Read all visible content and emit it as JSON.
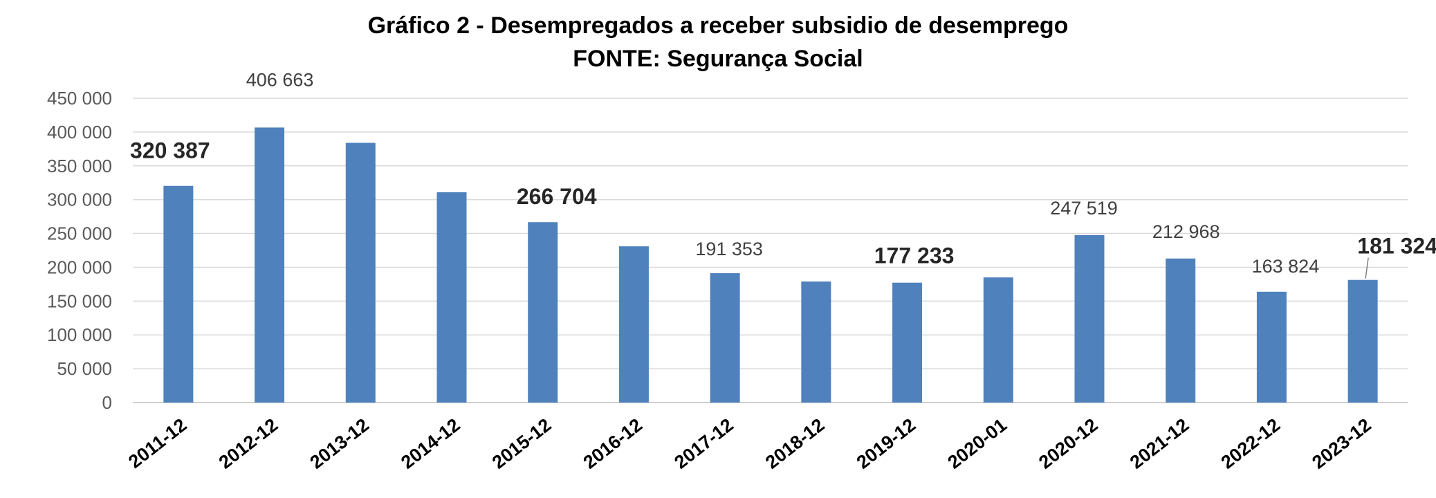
{
  "chart_data": {
    "type": "bar",
    "title": "Gráfico 2 - Desempregados a receber subsidio de desemprego",
    "subtitle": "FONTE: Segurança Social",
    "categories": [
      "2011-12",
      "2012-12",
      "2013-12",
      "2014-12",
      "2015-12",
      "2016-12",
      "2017-12",
      "2018-12",
      "2019-12",
      "2020-01",
      "2020-12",
      "2021-12",
      "2022-12",
      "2023-12"
    ],
    "values": [
      320387,
      406663,
      384000,
      311000,
      266704,
      231000,
      191353,
      179000,
      177233,
      185000,
      247519,
      212968,
      163824,
      181324
    ],
    "data_labels": [
      {
        "index": 0,
        "text": "320 387",
        "bold": true
      },
      {
        "index": 1,
        "text": "406 663",
        "bold": false
      },
      {
        "index": 4,
        "text": "266 704",
        "bold": true
      },
      {
        "index": 6,
        "text": "191 353",
        "bold": false
      },
      {
        "index": 8,
        "text": "177 233",
        "bold": true
      },
      {
        "index": 10,
        "text": "247 519",
        "bold": false
      },
      {
        "index": 11,
        "text": "212 968",
        "bold": false
      },
      {
        "index": 12,
        "text": "163 824",
        "bold": false
      },
      {
        "index": 13,
        "text": "181 324",
        "bold": true
      }
    ],
    "yticks": [
      "0",
      "50 000",
      "100 000",
      "150 000",
      "200 000",
      "250 000",
      "300 000",
      "350 000",
      "400 000",
      "450 000"
    ],
    "ylim": [
      0,
      450000
    ],
    "xlabel": "",
    "ylabel": "",
    "grid": true,
    "bar_color": "#4f81bd"
  }
}
